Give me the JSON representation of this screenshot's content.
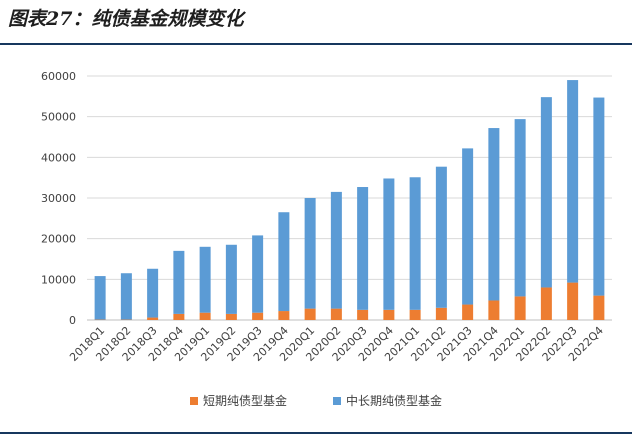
{
  "figure_title": "图表27：纯债基金规模变化",
  "chart_data": {
    "type": "bar",
    "stacked": true,
    "categories": [
      "2018Q1",
      "2018Q2",
      "2018Q3",
      "2018Q4",
      "2019Q1",
      "2019Q2",
      "2019Q3",
      "2019Q4",
      "2020Q1",
      "2020Q2",
      "2020Q3",
      "2020Q4",
      "2021Q1",
      "2021Q2",
      "2021Q3",
      "2021Q4",
      "2022Q1",
      "2022Q2",
      "2022Q3",
      "2022Q4"
    ],
    "series": [
      {
        "name": "短期纯债型基金",
        "color": "#ed7d31",
        "values": [
          100,
          100,
          600,
          1500,
          1800,
          1500,
          1800,
          2200,
          2800,
          2800,
          2500,
          2500,
          2500,
          3000,
          3800,
          4800,
          5800,
          8000,
          9200,
          6000
        ]
      },
      {
        "name": "中长期纯债型基金",
        "color": "#5b9bd5",
        "values": [
          10700,
          11400,
          12000,
          15500,
          16200,
          17000,
          19000,
          24300,
          27200,
          28700,
          30200,
          32300,
          32600,
          34700,
          38400,
          42400,
          43600,
          46800,
          49800,
          48700
        ]
      }
    ],
    "y_ticks": [
      "0",
      "10000",
      "20000",
      "30000",
      "40000",
      "50000",
      "60000"
    ],
    "ylim": [
      0,
      60000
    ],
    "grid": true,
    "legend_position": "bottom"
  }
}
